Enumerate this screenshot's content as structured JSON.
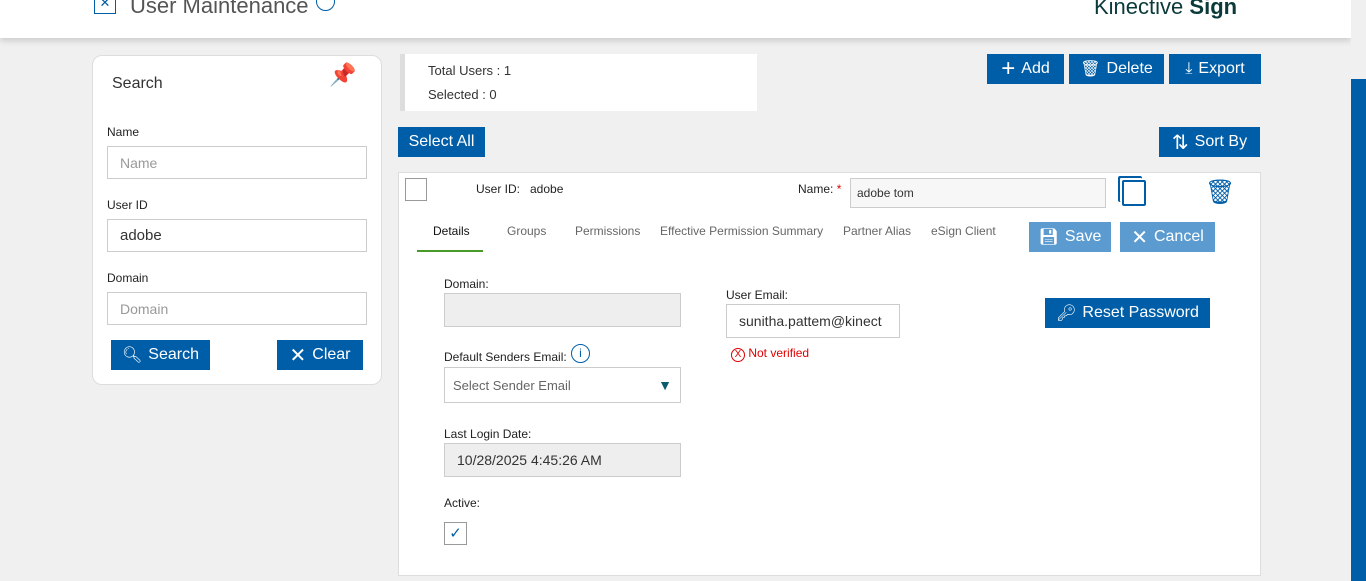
{
  "header": {
    "title": "User Maintenance",
    "brand_light": "Kinective",
    "brand_bold": "Sign"
  },
  "search": {
    "title": "Search",
    "name_label": "Name",
    "name_placeholder": "Name",
    "userid_label": "User ID",
    "userid_value": "adobe",
    "domain_label": "Domain",
    "domain_placeholder": "Domain",
    "search_button": "Search",
    "clear_button": "Clear"
  },
  "summary": {
    "total": "Total Users : 1",
    "selected": "Selected : 0"
  },
  "toolbar": {
    "add": "Add",
    "delete": "Delete",
    "export": "Export",
    "select_all": "Select All",
    "sort_by": "Sort By"
  },
  "user": {
    "userid_label": "User ID:",
    "userid_value": "adobe",
    "name_label": "Name:",
    "required": "*",
    "name_value": "adobe tom",
    "tabs": [
      "Details",
      "Groups",
      "Permissions",
      "Effective Permission Summary",
      "Partner Alias",
      "eSign Client"
    ],
    "save": "Save",
    "cancel": "Cancel",
    "domain_label": "Domain:",
    "domain_value": "",
    "sender_label": "Default Senders Email:",
    "sender_placeholder": "Select Sender Email",
    "last_login_label": "Last Login Date:",
    "last_login_value": "10/28/2025 4:45:26 AM",
    "active_label": "Active:",
    "active": true,
    "email_label": "User Email:",
    "email_value": "sunitha.pattem@kinect",
    "email_status": "Not verified",
    "reset_password": "Reset Password"
  },
  "colors": {
    "primary": "#005ea8",
    "primary_disabled": "#5b9bd0",
    "tab_active": "#4a9a2a",
    "error": "#e00000"
  }
}
